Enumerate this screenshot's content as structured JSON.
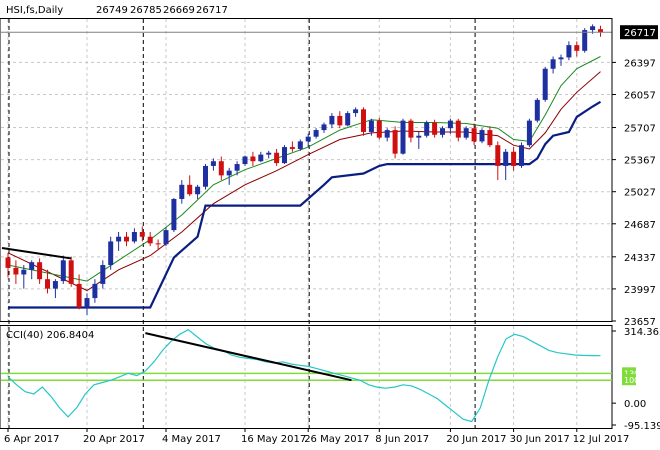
{
  "chart_data": [
    {
      "type": "candlestick",
      "header": {
        "symbol": "HSI,fs,Daily",
        "ohlc": [
          "26749",
          "26785",
          "26669",
          "26717"
        ]
      },
      "last_price": 26717,
      "last_price_label": "26717",
      "ylim": [
        23657,
        26857
      ],
      "y_ticks": [
        26397,
        26057,
        25707,
        25367,
        25027,
        24687,
        24337,
        23997,
        23657
      ],
      "x_ticks": [
        {
          "label": "6 Apr 2017",
          "bar": 0
        },
        {
          "label": "20 Apr 2017",
          "bar": 10
        },
        {
          "label": "4 May 2017",
          "bar": 20
        },
        {
          "label": "16 May 2017",
          "bar": 30
        },
        {
          "label": "26 May 2017",
          "bar": 38
        },
        {
          "label": "8 Jun 2017",
          "bar": 47
        },
        {
          "label": "20 Jun 2017",
          "bar": 56
        },
        {
          "label": "30 Jun 2017",
          "bar": 64
        },
        {
          "label": "12 Jul 2017",
          "bar": 72
        }
      ],
      "dashed_vlines_bar": [
        0,
        17,
        38,
        59
      ],
      "candles": [
        [
          24330,
          24380,
          24120,
          24220
        ],
        [
          24220,
          24300,
          24050,
          24150
        ],
        [
          24150,
          24250,
          24000,
          24200
        ],
        [
          24200,
          24300,
          24100,
          24280
        ],
        [
          24280,
          24320,
          24050,
          24100
        ],
        [
          24100,
          24200,
          23950,
          24000
        ],
        [
          24000,
          24100,
          23900,
          24080
        ],
        [
          24080,
          24350,
          24050,
          24300
        ],
        [
          24300,
          24340,
          24020,
          24050
        ],
        [
          24050,
          24150,
          23780,
          23800
        ],
        [
          23800,
          23950,
          23720,
          23900
        ],
        [
          23900,
          24100,
          23850,
          24050
        ],
        [
          24050,
          24300,
          24000,
          24250
        ],
        [
          24250,
          24550,
          24200,
          24500
        ],
        [
          24500,
          24600,
          24400,
          24550
        ],
        [
          24550,
          24600,
          24450,
          24500
        ],
        [
          24500,
          24640,
          24480,
          24600
        ],
        [
          24600,
          24660,
          24500,
          24550
        ],
        [
          24550,
          24600,
          24450,
          24480
        ],
        [
          24480,
          24520,
          24420,
          24470
        ],
        [
          24470,
          24650,
          24450,
          24620
        ],
        [
          24620,
          24960,
          24600,
          24950
        ],
        [
          24950,
          25150,
          24900,
          25100
        ],
        [
          25100,
          25200,
          24980,
          25000
        ],
        [
          25000,
          25100,
          24950,
          25080
        ],
        [
          25080,
          25320,
          25050,
          25300
        ],
        [
          25300,
          25380,
          25250,
          25350
        ],
        [
          25350,
          25400,
          25150,
          25200
        ],
        [
          25200,
          25280,
          25100,
          25250
        ],
        [
          25250,
          25350,
          25200,
          25320
        ],
        [
          25320,
          25410,
          25300,
          25400
        ],
        [
          25400,
          25450,
          25300,
          25350
        ],
        [
          25350,
          25450,
          25340,
          25420
        ],
        [
          25420,
          25460,
          25380,
          25440
        ],
        [
          25440,
          25480,
          25300,
          25330
        ],
        [
          25330,
          25520,
          25320,
          25500
        ],
        [
          25500,
          25560,
          25450,
          25480
        ],
        [
          25480,
          25580,
          25460,
          25560
        ],
        [
          25560,
          25640,
          25500,
          25610
        ],
        [
          25610,
          25700,
          25590,
          25680
        ],
        [
          25680,
          25760,
          25650,
          25740
        ],
        [
          25740,
          25860,
          25700,
          25830
        ],
        [
          25830,
          25880,
          25700,
          25730
        ],
        [
          25730,
          25880,
          25720,
          25860
        ],
        [
          25860,
          25920,
          25820,
          25900
        ],
        [
          25900,
          25920,
          25620,
          25660
        ],
        [
          25660,
          25800,
          25620,
          25780
        ],
        [
          25780,
          25810,
          25580,
          25600
        ],
        [
          25600,
          25700,
          25560,
          25680
        ],
        [
          25680,
          25720,
          25380,
          25430
        ],
        [
          25430,
          25800,
          25420,
          25780
        ],
        [
          25780,
          25800,
          25550,
          25600
        ],
        [
          25600,
          25660,
          25480,
          25620
        ],
        [
          25620,
          25780,
          25600,
          25760
        ],
        [
          25760,
          25790,
          25600,
          25630
        ],
        [
          25630,
          25720,
          25600,
          25700
        ],
        [
          25700,
          25800,
          25640,
          25780
        ],
        [
          25780,
          25800,
          25560,
          25600
        ],
        [
          25600,
          25720,
          25580,
          25700
        ],
        [
          25700,
          25750,
          25520,
          25560
        ],
        [
          25560,
          25700,
          25540,
          25680
        ],
        [
          25680,
          25720,
          25500,
          25520
        ],
        [
          25520,
          25560,
          25150,
          25300
        ],
        [
          25300,
          25480,
          25150,
          25450
        ],
        [
          25450,
          25500,
          25250,
          25300
        ],
        [
          25300,
          25550,
          25280,
          25520
        ],
        [
          25520,
          25800,
          25500,
          25780
        ],
        [
          25780,
          26020,
          25760,
          26000
        ],
        [
          26000,
          26350,
          25980,
          26330
        ],
        [
          26330,
          26460,
          26280,
          26430
        ],
        [
          26430,
          26480,
          26360,
          26450
        ],
        [
          26450,
          26620,
          26420,
          26580
        ],
        [
          26580,
          26620,
          26460,
          26520
        ],
        [
          26520,
          26760,
          26500,
          26740
        ],
        [
          26740,
          26800,
          26700,
          26780
        ],
        [
          26749,
          26785,
          26669,
          26717
        ]
      ],
      "channel_lower": [
        [
          0,
          23800
        ],
        [
          18,
          23800
        ],
        [
          21,
          24330
        ],
        [
          24,
          24550
        ],
        [
          25,
          24880
        ],
        [
          37,
          24880
        ],
        [
          40,
          25100
        ],
        [
          41,
          25180
        ],
        [
          45,
          25220
        ],
        [
          47,
          25300
        ],
        [
          48,
          25320
        ],
        [
          66,
          25320
        ],
        [
          67,
          25380
        ],
        [
          68,
          25530
        ],
        [
          69,
          25620
        ],
        [
          71,
          25660
        ],
        [
          72,
          25820
        ],
        [
          74,
          25930
        ],
        [
          75,
          25980
        ]
      ],
      "ma_fast": [
        [
          0,
          24250
        ],
        [
          10,
          24080
        ],
        [
          14,
          24300
        ],
        [
          18,
          24520
        ],
        [
          22,
          24780
        ],
        [
          26,
          25100
        ],
        [
          30,
          25260
        ],
        [
          34,
          25380
        ],
        [
          38,
          25500
        ],
        [
          42,
          25680
        ],
        [
          46,
          25790
        ],
        [
          50,
          25760
        ],
        [
          54,
          25760
        ],
        [
          58,
          25750
        ],
        [
          62,
          25700
        ],
        [
          64,
          25580
        ],
        [
          66,
          25560
        ],
        [
          68,
          25840
        ],
        [
          70,
          26150
        ],
        [
          72,
          26330
        ],
        [
          75,
          26460
        ]
      ],
      "ma_slow": [
        [
          0,
          24380
        ],
        [
          10,
          23980
        ],
        [
          14,
          24200
        ],
        [
          18,
          24350
        ],
        [
          22,
          24600
        ],
        [
          26,
          24900
        ],
        [
          30,
          25100
        ],
        [
          34,
          25250
        ],
        [
          38,
          25420
        ],
        [
          42,
          25580
        ],
        [
          46,
          25650
        ],
        [
          50,
          25670
        ],
        [
          54,
          25660
        ],
        [
          58,
          25660
        ],
        [
          62,
          25620
        ],
        [
          64,
          25520
        ],
        [
          66,
          25480
        ],
        [
          68,
          25650
        ],
        [
          70,
          25900
        ],
        [
          72,
          26080
        ],
        [
          75,
          26300
        ]
      ],
      "trendline": [
        [
          0,
          24430
        ],
        [
          8,
          24320
        ]
      ]
    },
    {
      "type": "line",
      "indicator_label": "CCI(40) 206.8404",
      "ylim": [
        -95.1391,
        314.3633
      ],
      "y_ticks": [
        {
          "label": "314.3633",
          "value": 314.3633
        },
        {
          "label": "0.00",
          "value": 0
        },
        {
          "label": "-95.1391",
          "value": -95.1391
        }
      ],
      "levels": [
        {
          "label": "130",
          "value": 130
        },
        {
          "label": "100",
          "value": 100
        }
      ],
      "series": [
        {
          "values": [
            115,
            80,
            50,
            40,
            70,
            30,
            -20,
            -60,
            -20,
            40,
            80,
            90,
            100,
            115,
            130,
            120,
            140,
            180,
            230,
            270,
            300,
            320,
            290,
            260,
            240,
            230,
            210,
            200,
            195,
            190,
            180,
            175,
            180,
            170,
            165,
            160,
            150,
            140,
            130,
            120,
            110,
            100,
            80,
            70,
            65,
            70,
            80,
            75,
            60,
            40,
            20,
            -10,
            -40,
            -70,
            -80,
            -20,
            100,
            200,
            280,
            300,
            290,
            270,
            250,
            230,
            220,
            215,
            210,
            208,
            207,
            206.84
          ]
        }
      ],
      "trendline": [
        [
          16,
          305
        ],
        [
          40,
          100
        ]
      ]
    }
  ]
}
